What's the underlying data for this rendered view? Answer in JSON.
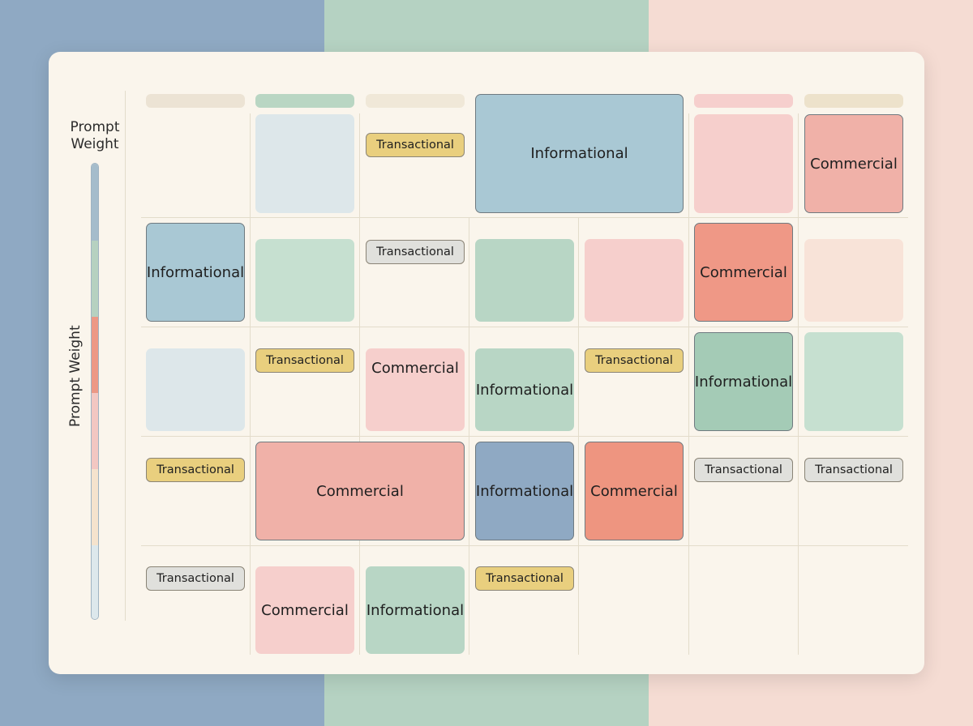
{
  "diagram": {
    "axis_label_top": "Prompt Weight",
    "axis_label_side": "Prompt Weight",
    "background_bands": [
      "#8fa9c3",
      "#b5d2c2",
      "#f5dcd3"
    ],
    "weight_scale_colors": [
      "#a5bccb",
      "#b6d1c0",
      "#ec9885",
      "#f3c7c2",
      "#f5e3cd",
      "#dde8ec"
    ],
    "column_header_colors": [
      "#ece3d4",
      "#b9d6c3",
      "#f0e8d8",
      "#f6cfcd",
      "#ede2cb"
    ],
    "cells": [
      {
        "label": "",
        "kind": "block",
        "color": "#dde7ea",
        "border": false
      },
      {
        "label": "Transactional",
        "kind": "pill",
        "color": "#e9cf7e"
      },
      {
        "label": "Informational",
        "kind": "block",
        "color": "#a9c8d4",
        "border": true
      },
      {
        "label": "",
        "kind": "block",
        "color": "#f6cfcc",
        "border": false
      },
      {
        "label": "Commercial",
        "kind": "block",
        "color": "#f0b1a8",
        "border": true
      },
      {
        "label": "Informational",
        "kind": "block",
        "color": "#a9c8d4",
        "border": true
      },
      {
        "label": "",
        "kind": "block",
        "color": "#c6e0d0",
        "border": false
      },
      {
        "label": "Transactional",
        "kind": "pill",
        "color": "#e0e0dc"
      },
      {
        "label": "",
        "kind": "block",
        "color": "#b8d6c5",
        "border": false
      },
      {
        "label": "",
        "kind": "block",
        "color": "#f6cfcc",
        "border": false
      },
      {
        "label": "Commercial",
        "kind": "block",
        "color": "#ef9886",
        "border": true
      },
      {
        "label": "",
        "kind": "block",
        "color": "#f8e3d8",
        "border": false
      },
      {
        "label": "",
        "kind": "block",
        "color": "#dde7ea",
        "border": false
      },
      {
        "label": "Transactional",
        "kind": "pill",
        "color": "#e9cf7e"
      },
      {
        "label": "Commercial",
        "kind": "block",
        "color": "#f6cfcc",
        "border": false
      },
      {
        "label": "Informational",
        "kind": "block",
        "color": "#b8d6c5",
        "border": false
      },
      {
        "label": "Transactional",
        "kind": "pill",
        "color": "#e9cf7e"
      },
      {
        "label": "Informational",
        "kind": "block",
        "color": "#a4cbb6",
        "border": true
      },
      {
        "label": "",
        "kind": "block",
        "color": "#c6e0d0",
        "border": false
      },
      {
        "label": "Transactional",
        "kind": "pill",
        "color": "#e9cf7e"
      },
      {
        "label": "Commercial",
        "kind": "block",
        "color": "#f0b1a8",
        "border": true
      },
      {
        "label": "Informational",
        "kind": "block",
        "color": "#8fa9c3",
        "border": true
      },
      {
        "label": "Commercial",
        "kind": "block",
        "color": "#ee9580",
        "border": true
      },
      {
        "label": "Transactional",
        "kind": "pill",
        "color": "#e0e0dc"
      },
      {
        "label": "Transactional",
        "kind": "pill",
        "color": "#e0e0dc"
      },
      {
        "label": "Transactional",
        "kind": "pill",
        "color": "#e0e0dc"
      },
      {
        "label": "Commercial",
        "kind": "block",
        "color": "#f6cfcc",
        "border": false
      },
      {
        "label": "Informational",
        "kind": "block",
        "color": "#b8d6c5",
        "border": false
      },
      {
        "label": "Transactional",
        "kind": "pill",
        "color": "#e9cf7e"
      }
    ]
  }
}
